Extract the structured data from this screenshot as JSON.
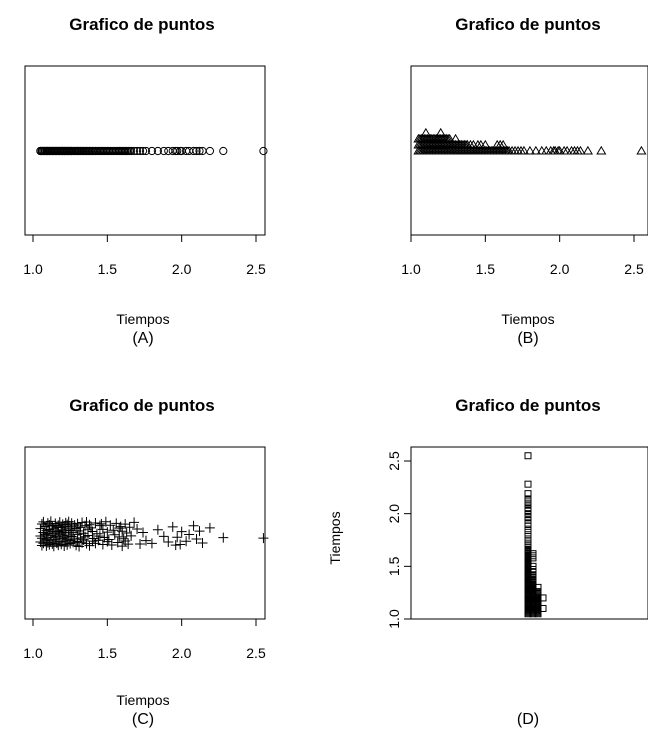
{
  "chart_data": [
    {
      "id": "A",
      "type": "scatter",
      "variant": "stripchart-overplot",
      "orientation": "horizontal",
      "marker": "circle",
      "title": "Grafico de puntos",
      "xlabel": "Tiempos",
      "caption": "(A)",
      "xlim": [
        1.0,
        2.6
      ],
      "xticks": [
        "1.0",
        "1.5",
        "2.0",
        "2.5"
      ],
      "grid": false
    },
    {
      "id": "B",
      "type": "scatter",
      "variant": "stripchart-stack",
      "orientation": "horizontal",
      "marker": "triangle",
      "title": "Grafico de puntos",
      "xlabel": "Tiempos",
      "caption": "(B)",
      "xlim": [
        1.0,
        2.6
      ],
      "xticks": [
        "1.0",
        "1.5",
        "2.0",
        "2.5"
      ],
      "grid": false
    },
    {
      "id": "C",
      "type": "scatter",
      "variant": "stripchart-jitter",
      "orientation": "horizontal",
      "marker": "plus",
      "title": "Grafico de puntos",
      "xlabel": "Tiempos",
      "caption": "(C)",
      "xlim": [
        1.0,
        2.6
      ],
      "xticks": [
        "1.0",
        "1.5",
        "2.0",
        "2.5"
      ],
      "grid": false
    },
    {
      "id": "D",
      "type": "scatter",
      "variant": "stripchart-stack",
      "orientation": "vertical",
      "marker": "square",
      "title": "Grafico de puntos",
      "ylabel": "Tiempos",
      "caption": "(D)",
      "ylim": [
        1.0,
        2.6
      ],
      "yticks": [
        "1.0",
        "1.5",
        "2.0",
        "2.5"
      ],
      "grid": false
    }
  ],
  "tiempos": [
    1.05,
    1.05,
    1.05,
    1.06,
    1.06,
    1.06,
    1.07,
    1.07,
    1.07,
    1.08,
    1.08,
    1.08,
    1.09,
    1.09,
    1.09,
    1.1,
    1.1,
    1.1,
    1.1,
    1.11,
    1.11,
    1.11,
    1.12,
    1.12,
    1.12,
    1.13,
    1.13,
    1.13,
    1.14,
    1.14,
    1.14,
    1.15,
    1.15,
    1.15,
    1.16,
    1.16,
    1.16,
    1.17,
    1.17,
    1.17,
    1.18,
    1.18,
    1.18,
    1.19,
    1.19,
    1.19,
    1.2,
    1.2,
    1.2,
    1.2,
    1.21,
    1.21,
    1.21,
    1.22,
    1.22,
    1.22,
    1.23,
    1.23,
    1.23,
    1.24,
    1.24,
    1.24,
    1.25,
    1.25,
    1.25,
    1.26,
    1.26,
    1.26,
    1.27,
    1.27,
    1.28,
    1.28,
    1.29,
    1.29,
    1.3,
    1.3,
    1.3,
    1.31,
    1.31,
    1.32,
    1.32,
    1.33,
    1.33,
    1.34,
    1.34,
    1.35,
    1.35,
    1.36,
    1.36,
    1.37,
    1.37,
    1.38,
    1.38,
    1.39,
    1.4,
    1.4,
    1.41,
    1.42,
    1.42,
    1.43,
    1.44,
    1.45,
    1.45,
    1.46,
    1.47,
    1.47,
    1.48,
    1.49,
    1.5,
    1.5,
    1.51,
    1.52,
    1.53,
    1.54,
    1.55,
    1.56,
    1.57,
    1.58,
    1.58,
    1.59,
    1.6,
    1.6,
    1.61,
    1.62,
    1.62,
    1.63,
    1.64,
    1.65,
    1.66,
    1.68,
    1.7,
    1.72,
    1.74,
    1.76,
    1.8,
    1.84,
    1.88,
    1.91,
    1.94,
    1.96,
    1.97,
    1.99,
    2.0,
    2.03,
    2.05,
    2.08,
    2.1,
    2.12,
    2.14,
    2.19,
    2.28,
    2.55
  ],
  "jitter": [
    0.62,
    -0.41,
    0.15,
    0.88,
    -0.77,
    0.33,
    -0.12,
    0.71,
    -0.93,
    0.47,
    0.05,
    -0.58,
    0.91,
    -0.26,
    0.38,
    -0.84,
    0.66,
    -0.03,
    0.24,
    -0.69,
    0.82,
    -0.35,
    0.11,
    -0.97,
    0.53,
    -0.18,
    0.76,
    -0.62,
    0.29,
    -0.44,
    0.94,
    -0.07,
    0.41,
    -0.81,
    0.18,
    -0.53,
    0.69,
    -0.22,
    0.86,
    -0.66,
    0.02,
    -0.91,
    0.57,
    -0.31,
    0.79,
    -0.49,
    0.13,
    -0.74,
    0.36,
    -0.15,
    0.92,
    -0.59,
    0.25,
    -0.86,
    0.61,
    -0.09,
    0.44,
    -0.72,
    0.83,
    -0.38,
    0.08,
    -0.95,
    0.51,
    -0.27,
    0.73,
    -0.56,
    0.19,
    -0.83,
    0.64,
    -0.11,
    0.39,
    -0.68,
    0.87,
    -0.43,
    0.03,
    -0.79,
    0.58,
    -0.24,
    0.96,
    -0.51,
    0.31,
    -0.88,
    0.67,
    -0.06,
    0.45,
    -0.63,
    0.21,
    -0.92,
    0.74,
    -0.33,
    0.12,
    -0.71,
    0.89,
    -0.47,
    0.55,
    -0.19,
    0.35,
    -0.85,
    0.72,
    -0.02,
    0.48,
    -0.64,
    0.16,
    -0.78,
    0.81,
    -0.36,
    0.27,
    -0.94,
    0.59,
    -0.14,
    0.42,
    -0.67,
    0.85,
    -0.29,
    0.06,
    -0.82,
    0.65,
    -0.45,
    0.22,
    -0.57,
    0.93,
    -0.21,
    0.37,
    -0.76,
    0.54,
    -0.08,
    0.78,
    -0.52,
    0.14,
    -0.89,
    -0.38,
    0.77,
    -0.12,
    0.51,
    0.72,
    -0.33,
    0.18,
    0.62,
    -0.55,
    0.86,
    0.25,
    0.81,
    -0.18,
    0.56,
    0.04,
    -0.63,
    0.38,
    -0.22,
    0.69,
    -0.47,
    0.28,
    0.32
  ],
  "stack_levels_B": [
    0,
    0,
    0,
    0,
    0,
    0,
    0,
    0,
    0,
    0,
    0,
    0,
    0,
    0,
    0,
    0,
    0,
    0,
    0,
    0,
    0,
    0,
    0,
    0,
    0,
    0,
    0,
    0,
    0,
    0,
    0,
    0,
    0,
    0,
    0,
    0,
    0,
    0,
    0,
    0,
    0,
    0,
    0,
    0,
    0,
    0,
    0,
    0,
    0,
    0,
    0,
    0,
    0,
    0,
    0,
    0,
    0,
    0,
    0,
    0,
    0,
    0,
    0,
    0,
    0,
    0,
    0,
    0,
    0,
    0,
    0,
    0,
    0,
    0,
    0,
    0,
    0,
    0,
    0,
    0,
    0,
    0,
    0,
    0,
    0,
    0,
    0,
    0,
    0,
    0,
    0,
    0,
    0,
    0,
    0,
    0,
    0,
    0,
    0,
    0,
    0,
    0,
    0,
    0,
    0,
    0,
    0,
    0,
    0,
    0,
    0,
    0,
    0,
    0,
    0,
    0,
    0,
    0,
    0,
    0,
    0,
    0,
    0,
    0,
    0,
    0,
    0,
    0,
    0,
    0,
    0,
    0,
    0,
    0,
    0,
    0,
    0,
    0,
    0,
    0,
    0,
    0,
    0,
    0,
    0,
    0,
    0,
    0,
    0,
    0,
    0,
    0,
    0,
    0,
    0,
    0,
    0,
    0
  ]
}
